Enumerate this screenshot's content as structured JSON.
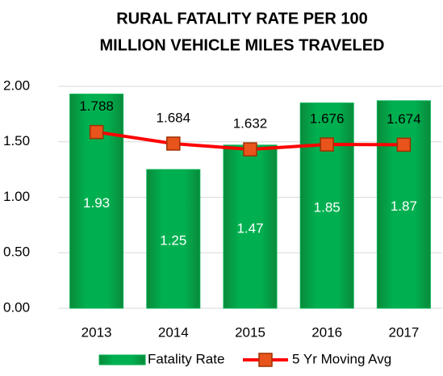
{
  "chart_data": {
    "type": "bar",
    "title": [
      "RURAL FATALITY RATE PER 100",
      "MILLION VEHICLE MILES TRAVELED"
    ],
    "categories": [
      "2013",
      "2014",
      "2015",
      "2016",
      "2017"
    ],
    "series": [
      {
        "name": "Fatality Rate",
        "type": "bar",
        "color": "#00b050",
        "values": [
          1.93,
          1.25,
          1.47,
          1.85,
          1.87
        ]
      },
      {
        "name": "5 Yr Moving Avg",
        "type": "line",
        "axis": "y2",
        "color": "#ff0000",
        "marker_color": "#e8541c",
        "values": [
          1.788,
          1.684,
          1.632,
          1.676,
          1.674
        ]
      }
    ],
    "ylim": [
      0,
      2
    ],
    "yticks": [
      {
        "value": 0,
        "label": "0.00"
      },
      {
        "value": 0.5,
        "label": "0.50"
      },
      {
        "value": 1,
        "label": "1.00"
      },
      {
        "value": 1.5,
        "label": "1.50"
      },
      {
        "value": 2,
        "label": "2.00"
      }
    ],
    "y2lim": [
      0.2,
      2.2
    ],
    "grid": true,
    "legend": "bottom"
  }
}
